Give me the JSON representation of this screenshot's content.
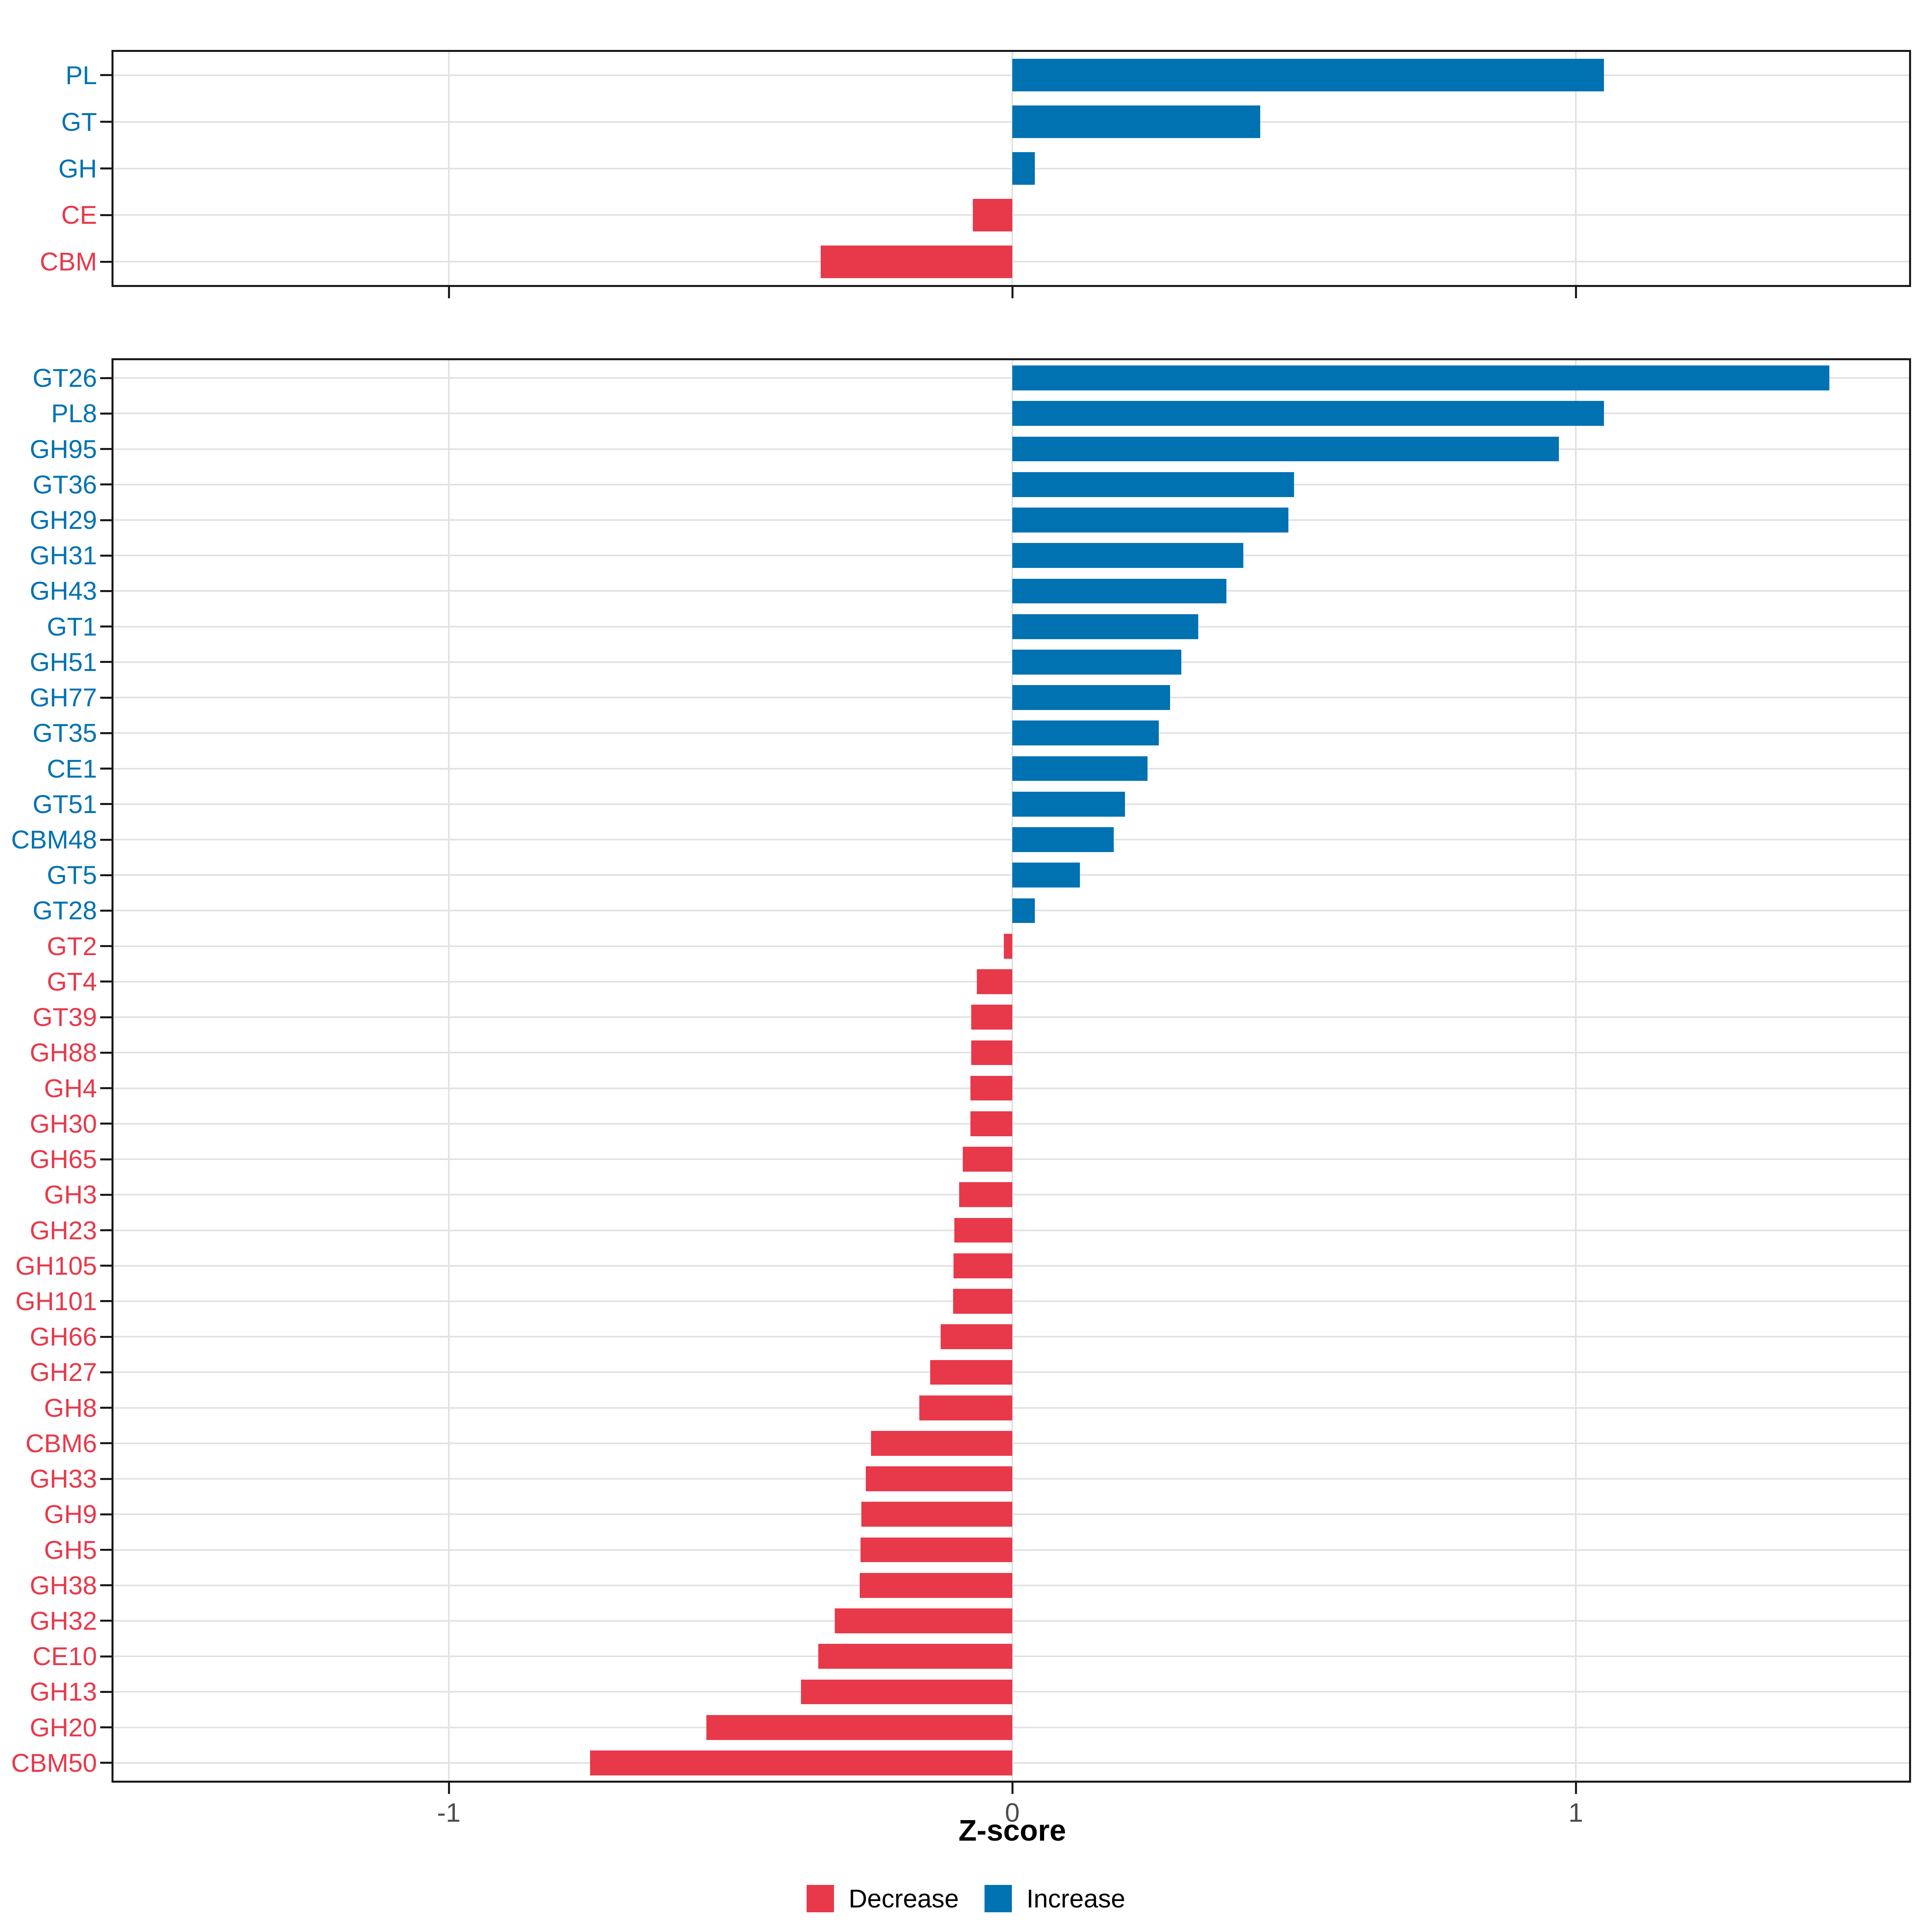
{
  "chart_data": [
    {
      "type": "bar",
      "orientation": "horizontal",
      "panel": "cazyme-classes",
      "categories": [
        "PL",
        "GT",
        "GH",
        "CE",
        "CBM"
      ],
      "values": [
        1.05,
        0.44,
        0.04,
        -0.07,
        -0.34
      ],
      "xlim": [
        -1.6,
        1.6
      ],
      "grid": true,
      "legend_position": "bottom"
    },
    {
      "type": "bar",
      "orientation": "horizontal",
      "panel": "cazyme-families",
      "categories": [
        "GT26",
        "PL8",
        "GH95",
        "GT36",
        "GH29",
        "GH31",
        "GH43",
        "GT1",
        "GH51",
        "GH77",
        "GT35",
        "CE1",
        "GT51",
        "CBM48",
        "GT5",
        "GT28",
        "GT2",
        "GT4",
        "GT39",
        "GH88",
        "GH4",
        "GH30",
        "GH65",
        "GH3",
        "GH23",
        "GH105",
        "GH101",
        "GH66",
        "GH27",
        "GH8",
        "CBM6",
        "GH33",
        "GH9",
        "GH5",
        "GH38",
        "GH32",
        "CE10",
        "GH13",
        "GH20",
        "CBM50"
      ],
      "values": [
        1.45,
        1.05,
        0.97,
        0.5,
        0.49,
        0.41,
        0.38,
        0.33,
        0.3,
        0.28,
        0.26,
        0.24,
        0.2,
        0.18,
        0.12,
        0.04,
        -0.015,
        -0.063,
        -0.073,
        -0.073,
        -0.074,
        -0.074,
        -0.088,
        -0.094,
        -0.103,
        -0.104,
        -0.105,
        -0.127,
        -0.146,
        -0.165,
        -0.251,
        -0.26,
        -0.268,
        -0.269,
        -0.271,
        -0.315,
        -0.344,
        -0.375,
        -0.543,
        -0.749
      ],
      "xlim": [
        -1.6,
        1.6
      ],
      "grid": true
    }
  ],
  "x_axis": {
    "title": "Z-score",
    "ticks": [
      -1,
      0,
      1
    ],
    "tick_labels": [
      "-1",
      "0",
      "1"
    ]
  },
  "legend": {
    "items": [
      {
        "label": "Decrease",
        "color": "#E8394A"
      },
      {
        "label": "Increase",
        "color": "#0072B2"
      }
    ]
  },
  "colors": {
    "increase": "#0072B2",
    "decrease": "#E8394A",
    "gridline": "#E2E2E2",
    "tick_label": "#4D4D4D",
    "panel_border": "#1A1A1A",
    "background": "#FFFFFF"
  }
}
